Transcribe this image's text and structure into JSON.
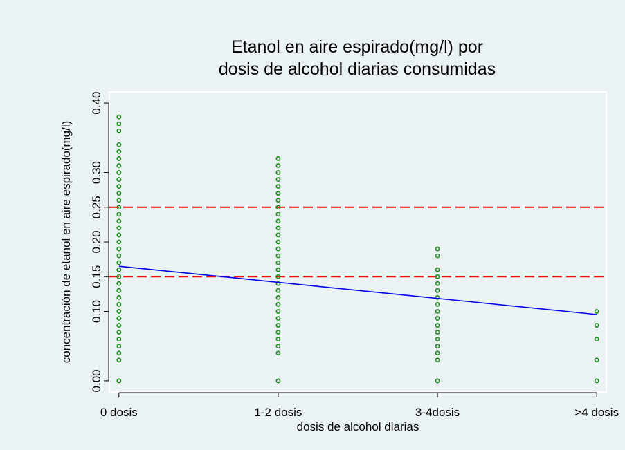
{
  "chart_data": {
    "type": "scatter",
    "title": [
      "Etanol en aire espirado(mg/l) por",
      "dosis de alcohol diarias consumidas"
    ],
    "x_label": "dosis de alcohol diarias",
    "y_label": "concentración de etanol en aire espirado(mg/l)",
    "xlim": [
      -0.06,
      3.06
    ],
    "ylim": [
      -0.016,
      0.416
    ],
    "xticks": [
      {
        "value": 0,
        "label": "0 dosis"
      },
      {
        "value": 1,
        "label": "1-2 dosis"
      },
      {
        "value": 2,
        "label": "3-4dosis"
      },
      {
        "value": 3,
        "label": ">4 dosis"
      }
    ],
    "yticks": [
      {
        "value": 0,
        "label": "0.00"
      },
      {
        "value": 0.1,
        "label": "0.10"
      },
      0.15,
      {
        "value": 0.2,
        "label": "0.20"
      },
      0.25,
      {
        "value": 0.3,
        "label": "0.30"
      },
      {
        "value": 0.4,
        "label": "0.40"
      }
    ],
    "point_color": "#1a8a1a",
    "groups": [
      {
        "x": 0,
        "values": [
          0,
          0.03,
          0.04,
          0.05,
          0.06,
          0.07,
          0.08,
          0.09,
          0.1,
          0.11,
          0.12,
          0.13,
          0.14,
          0.15,
          0.16,
          0.17,
          0.18,
          0.19,
          0.2,
          0.21,
          0.22,
          0.23,
          0.24,
          0.25,
          0.26,
          0.27,
          0.28,
          0.29,
          0.3,
          0.31,
          0.32,
          0.33,
          0.34,
          0.36,
          0.37,
          0.38
        ]
      },
      {
        "x": 1,
        "values": [
          0,
          0.04,
          0.05,
          0.06,
          0.07,
          0.08,
          0.09,
          0.1,
          0.11,
          0.12,
          0.13,
          0.14,
          0.15,
          0.16,
          0.17,
          0.18,
          0.19,
          0.2,
          0.21,
          0.22,
          0.23,
          0.24,
          0.25,
          0.26,
          0.27,
          0.28,
          0.29,
          0.3,
          0.31,
          0.32
        ]
      },
      {
        "x": 2,
        "values": [
          0,
          0.03,
          0.04,
          0.05,
          0.06,
          0.07,
          0.08,
          0.09,
          0.1,
          0.11,
          0.12,
          0.13,
          0.14,
          0.15,
          0.16,
          0.18,
          0.19
        ]
      },
      {
        "x": 3,
        "values": [
          0,
          0.03,
          0.06,
          0.08,
          0.1
        ]
      }
    ],
    "fit": {
      "color": "#0000ee",
      "x": [
        0,
        3
      ],
      "values": [
        0.165,
        0.0955
      ]
    },
    "hlines": {
      "color": "#ee1111",
      "values": [
        0.15,
        0.25
      ]
    }
  }
}
